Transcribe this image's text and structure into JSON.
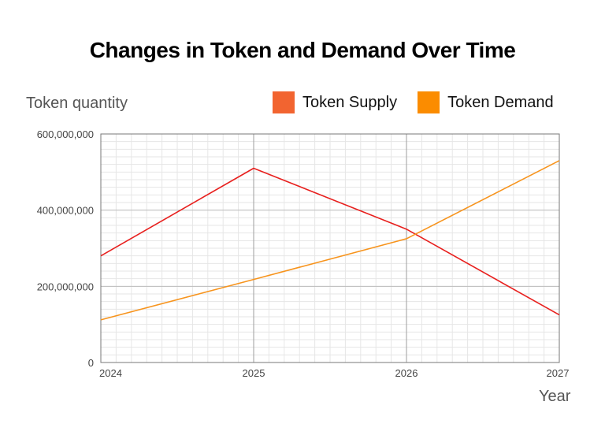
{
  "chart_data": {
    "type": "line",
    "title": "Changes in Token and Demand Over Time",
    "ylabel": "Token quantity",
    "xlabel": "Year",
    "x": [
      "2024",
      "2025",
      "2026",
      "2027"
    ],
    "ylim": [
      0,
      600000000
    ],
    "yticks": [
      {
        "value": 0,
        "label": "0"
      },
      {
        "value": 200000000,
        "label": "200,000,000"
      },
      {
        "value": 400000000,
        "label": "400,000,000"
      },
      {
        "value": 600000000,
        "label": "600,000,000"
      }
    ],
    "grid": true,
    "legend_position": "top-right",
    "series": [
      {
        "name": "Token Supply",
        "color": "#e8201e",
        "legend_color": "#f26430",
        "values": [
          280000000,
          510000000,
          350000000,
          125000000
        ]
      },
      {
        "name": "Token Demand",
        "color": "#f7941d",
        "legend_color": "#fb8c00",
        "values": [
          112000000,
          218000000,
          325000000,
          530000000
        ]
      }
    ]
  }
}
